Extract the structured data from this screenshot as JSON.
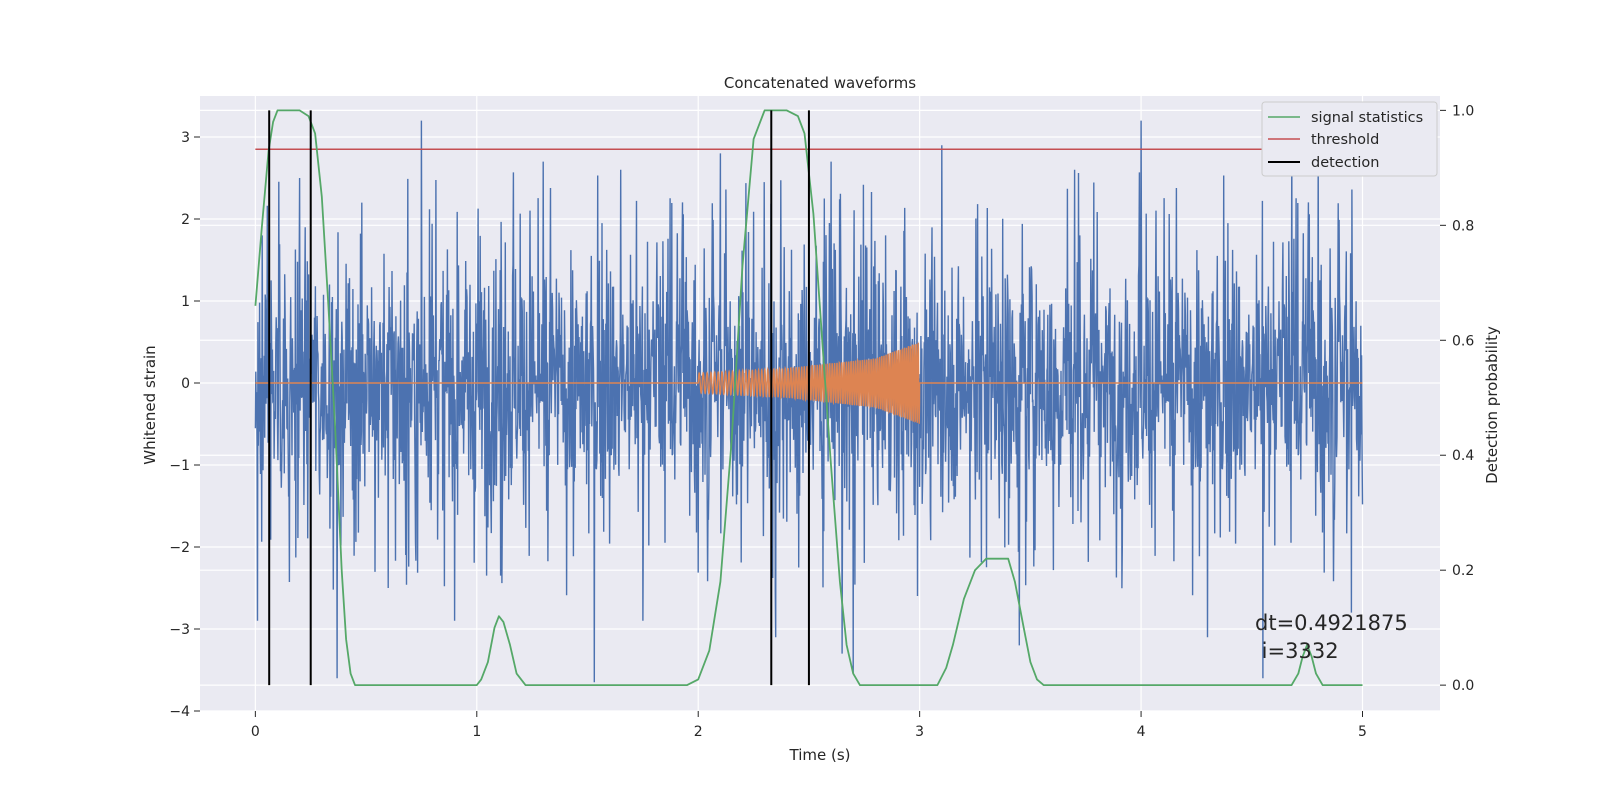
{
  "chart_data": {
    "type": "line",
    "title": "Concatenated waveforms",
    "xlabel": "Time (s)",
    "ylabel_left": "Whitened strain",
    "ylabel_right": "Detection probability",
    "xlim": [
      -0.25,
      5.35
    ],
    "ylim_left": [
      -4,
      3.5
    ],
    "ylim_right": [
      -0.045,
      1.025
    ],
    "x_ticks": [
      0,
      1,
      2,
      3,
      4,
      5
    ],
    "y_left_ticks": [
      -4,
      -3,
      -2,
      -1,
      0,
      1,
      2,
      3
    ],
    "y_right_ticks": [
      0.0,
      0.2,
      0.4,
      0.6,
      0.8,
      1.0
    ],
    "x_tick_labels": [
      "0",
      "1",
      "2",
      "3",
      "4",
      "5"
    ],
    "y_left_tick_labels": [
      "−4",
      "−3",
      "−2",
      "−1",
      "0",
      "1",
      "2",
      "3"
    ],
    "y_right_tick_labels": [
      "0.0",
      "0.2",
      "0.4",
      "0.6",
      "0.8",
      "1.0"
    ],
    "grid": true,
    "legend_position": "top-right",
    "legend": [
      {
        "label": "signal statistics",
        "color": "#55a868"
      },
      {
        "label": "threshold",
        "color": "#c44e52"
      },
      {
        "label": "detection",
        "color": "#000000"
      }
    ],
    "series": [
      {
        "axis": "left",
        "color": "#4c72b0",
        "style": "noise",
        "x_range": [
          0,
          5
        ],
        "spike_points": [
          [
            0.01,
            -2.9
          ],
          [
            0.03,
            1.8
          ],
          [
            0.2,
            2.5
          ],
          [
            0.25,
            -3.5
          ],
          [
            0.37,
            -3.6
          ],
          [
            0.48,
            2.2
          ],
          [
            0.6,
            -2.5
          ],
          [
            0.75,
            3.2
          ],
          [
            0.9,
            -2.9
          ],
          [
            1.3,
            2.7
          ],
          [
            1.53,
            -3.65
          ],
          [
            1.65,
            2.6
          ],
          [
            1.75,
            -2.9
          ],
          [
            2.1,
            2.8
          ],
          [
            2.35,
            -3.1
          ],
          [
            2.6,
            2.7
          ],
          [
            2.65,
            -3.3
          ],
          [
            2.7,
            -3.55
          ],
          [
            3.1,
            2.9
          ],
          [
            3.45,
            -3.2
          ],
          [
            3.7,
            2.6
          ],
          [
            4.0,
            3.2
          ],
          [
            4.3,
            -3.1
          ],
          [
            4.55,
            -3.6
          ],
          [
            4.68,
            2.9
          ],
          [
            4.8,
            2.8
          ],
          [
            4.95,
            -2.8
          ]
        ]
      },
      {
        "axis": "left",
        "color": "#dd8452",
        "style": "chirp",
        "x": [
          0,
          2,
          2.4,
          2.8,
          3.0,
          3.0,
          5
        ],
        "envelope": [
          0,
          0.12,
          0.18,
          0.3,
          0.5,
          0,
          0
        ]
      },
      {
        "name": "signal statistics",
        "axis": "right",
        "color": "#55a868",
        "x": [
          0.0,
          0.03,
          0.06,
          0.08,
          0.1,
          0.14,
          0.2,
          0.24,
          0.27,
          0.3,
          0.33,
          0.36,
          0.39,
          0.41,
          0.43,
          0.45,
          1.0,
          1.02,
          1.05,
          1.08,
          1.1,
          1.12,
          1.15,
          1.18,
          1.22,
          1.25,
          1.95,
          2.0,
          2.05,
          2.1,
          2.15,
          2.2,
          2.25,
          2.3,
          2.35,
          2.4,
          2.45,
          2.48,
          2.52,
          2.56,
          2.6,
          2.64,
          2.67,
          2.7,
          2.73,
          2.76,
          3.08,
          3.12,
          3.15,
          3.2,
          3.25,
          3.3,
          3.35,
          3.4,
          3.43,
          3.47,
          3.5,
          3.53,
          3.56,
          4.68,
          4.71,
          4.73,
          4.75,
          4.77,
          4.79,
          4.82,
          5.0
        ],
        "y": [
          0.66,
          0.8,
          0.93,
          0.98,
          1.0,
          1.0,
          1.0,
          0.99,
          0.96,
          0.85,
          0.66,
          0.45,
          0.2,
          0.08,
          0.02,
          0.0,
          0.0,
          0.01,
          0.04,
          0.1,
          0.12,
          0.11,
          0.07,
          0.02,
          0.0,
          0.0,
          0.0,
          0.01,
          0.06,
          0.18,
          0.42,
          0.73,
          0.95,
          1.0,
          1.0,
          1.0,
          0.99,
          0.96,
          0.82,
          0.6,
          0.38,
          0.18,
          0.07,
          0.02,
          0.0,
          0.0,
          0.0,
          0.03,
          0.07,
          0.15,
          0.2,
          0.22,
          0.22,
          0.22,
          0.18,
          0.1,
          0.04,
          0.01,
          0.0,
          0.0,
          0.02,
          0.05,
          0.07,
          0.05,
          0.02,
          0.0,
          0.0
        ]
      },
      {
        "name": "threshold",
        "axis": "left",
        "color": "#c44e52",
        "x": [
          0,
          5.1
        ],
        "y": [
          2.85,
          2.85
        ]
      }
    ],
    "detections": [
      {
        "x": 0.0625,
        "y_range": [
          0.0,
          1.0
        ]
      },
      {
        "x": 0.25,
        "y_range": [
          0.0,
          1.0
        ]
      },
      {
        "x": 2.33,
        "y_range": [
          0.0,
          1.0
        ]
      },
      {
        "x": 2.5,
        "y_range": [
          0.0,
          1.0
        ]
      }
    ],
    "annotations": [
      "dt=0.4921875",
      " i=3332"
    ]
  }
}
